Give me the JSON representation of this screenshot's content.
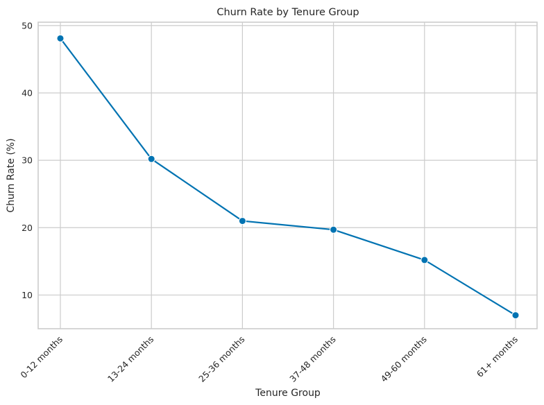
{
  "chart_data": {
    "type": "line",
    "title": "Churn Rate by Tenure Group",
    "xlabel": "Tenure Group",
    "ylabel": "Churn Rate (%)",
    "categories": [
      "0-12 months",
      "13-24 months",
      "25-36 months",
      "37-48 months",
      "49-60 months",
      "61+ months"
    ],
    "series": [
      {
        "values": [
          48.1,
          30.2,
          21.0,
          19.7,
          15.2,
          7.0
        ],
        "color": "#0173b2"
      }
    ],
    "ylim": [
      5,
      50.5
    ],
    "yticks": [
      10,
      20,
      30,
      40,
      50
    ],
    "grid": true,
    "marker": "circle"
  }
}
